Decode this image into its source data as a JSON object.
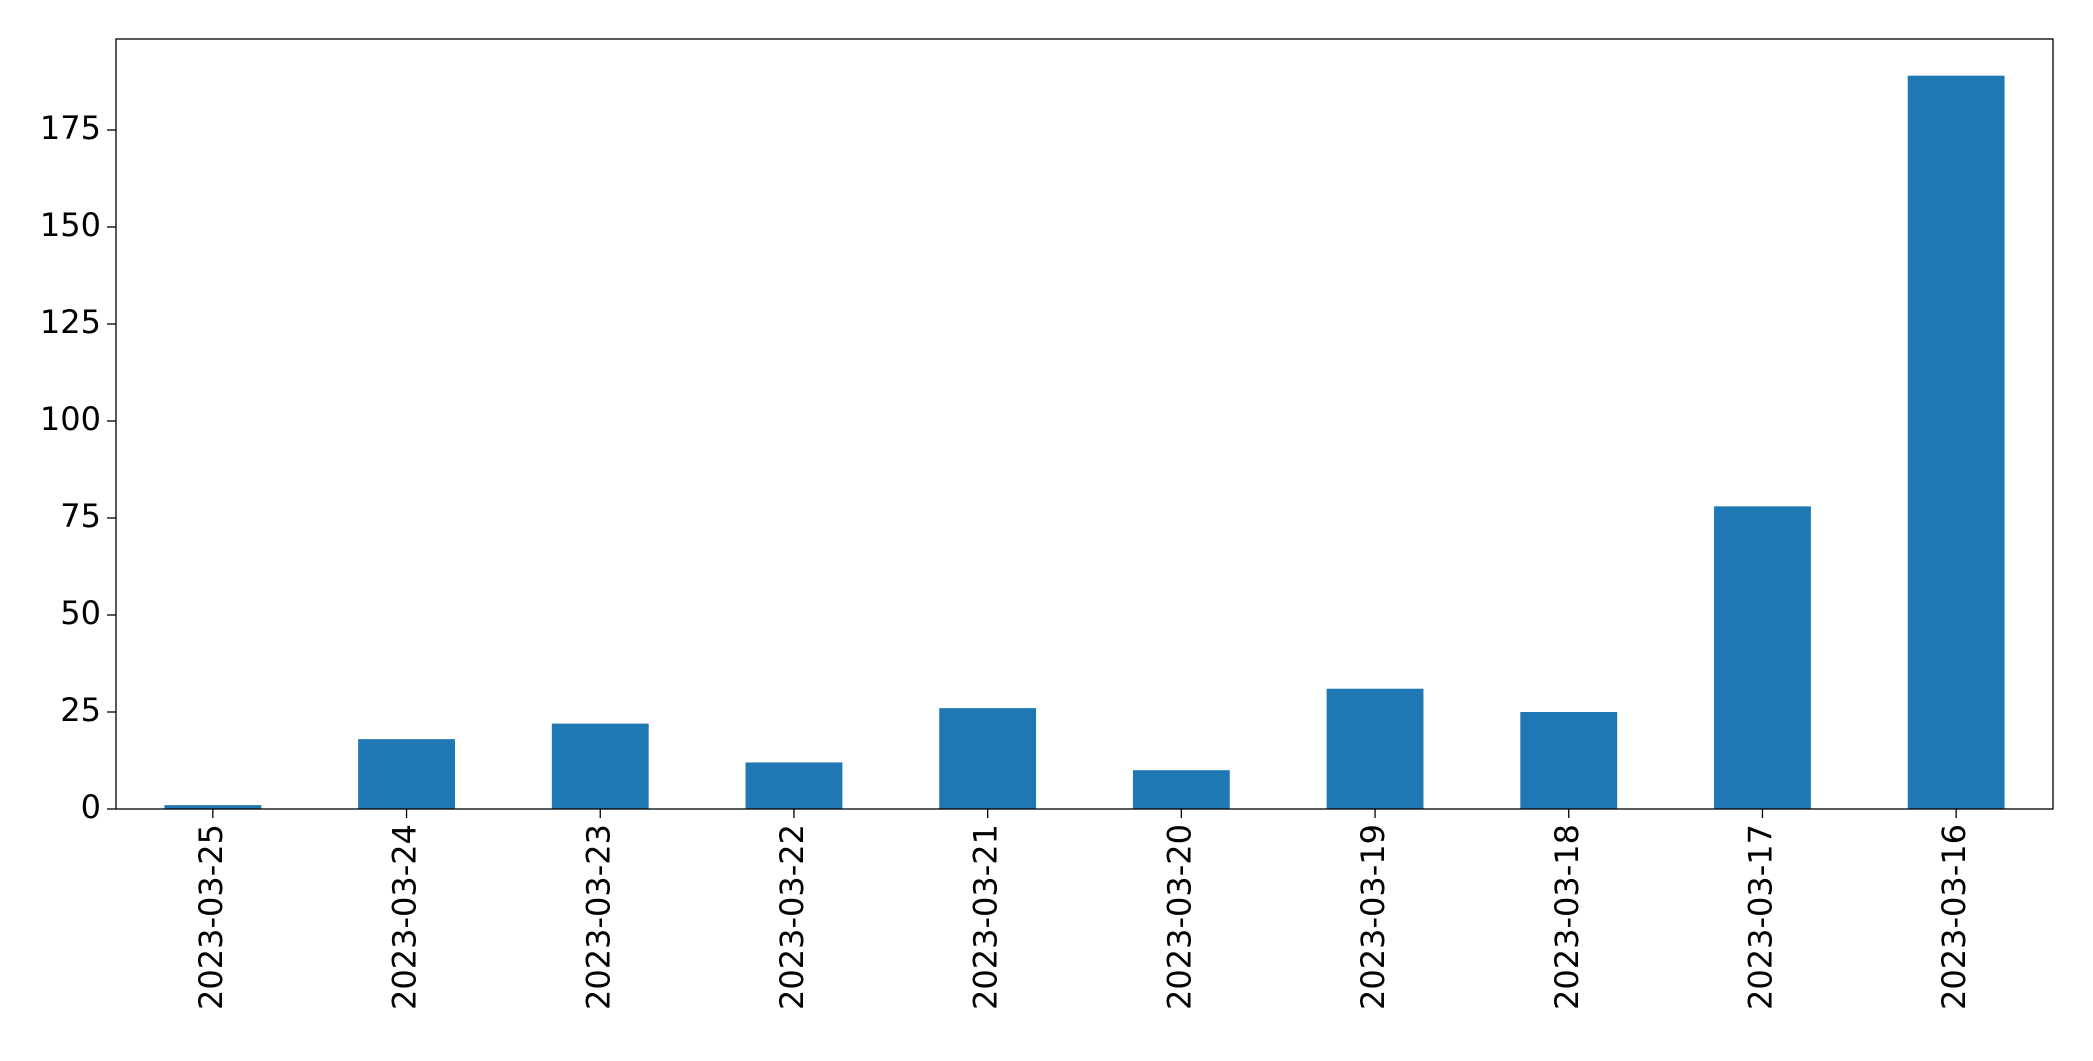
{
  "chart_data": {
    "type": "bar",
    "categories": [
      "2023-03-25",
      "2023-03-24",
      "2023-03-23",
      "2023-03-22",
      "2023-03-21",
      "2023-03-20",
      "2023-03-19",
      "2023-03-18",
      "2023-03-17",
      "2023-03-16"
    ],
    "values": [
      1,
      18,
      22,
      12,
      26,
      10,
      31,
      25,
      78,
      189
    ],
    "color": "#1f77b4",
    "ylim": [
      0,
      198.45
    ],
    "yticks": [
      0,
      25,
      50,
      75,
      100,
      125,
      150,
      175
    ],
    "grid": false
  }
}
